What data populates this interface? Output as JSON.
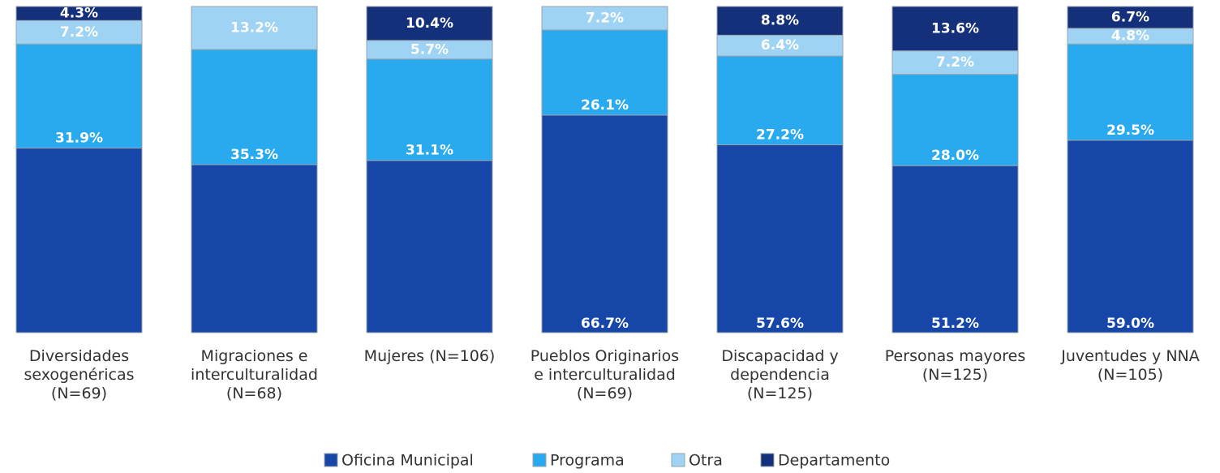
{
  "chart_data": {
    "type": "stacked_bar",
    "categories": [
      "Diversidades sexogenéricas (N=69)",
      "Migraciones e interculturalidad (N=68)",
      "Mujeres (N=106)",
      "Pueblos Originarios e interculturalidad (N=69)",
      "Discapacidad y dependencia (N=125)",
      "Personas mayores (N=125)",
      "Juventudes y NNA (N=105)"
    ],
    "ylim": [
      0,
      100
    ],
    "series": [
      {
        "name": "Oficina Municipal",
        "color": "#1646a8",
        "values": [
          56.6,
          51.5,
          52.8,
          66.7,
          57.6,
          51.2,
          59.0
        ],
        "value_labels": [
          null,
          null,
          null,
          "66.7%",
          "57.6%",
          "51.2%",
          "59.0%"
        ]
      },
      {
        "name": "Programa",
        "color": "#29aaee",
        "values": [
          31.9,
          35.3,
          31.1,
          26.1,
          27.2,
          28.0,
          29.5
        ],
        "value_labels": [
          "31.9%",
          "35.3%",
          "31.1%",
          "26.1%",
          "27.2%",
          "28.0%",
          "29.5%"
        ]
      },
      {
        "name": "Otra",
        "color": "#9fd3f3",
        "values": [
          7.2,
          13.2,
          5.7,
          7.2,
          6.4,
          7.2,
          4.8
        ],
        "value_labels": [
          "7.2%",
          "13.2%",
          "5.7%",
          "7.2%",
          "6.4%",
          "7.2%",
          "4.8%"
        ]
      },
      {
        "name": "Departamento",
        "color": "#14307a",
        "values": [
          4.3,
          0,
          10.4,
          0,
          8.8,
          13.6,
          6.7
        ],
        "value_labels": [
          "4.3%",
          null,
          "10.4%",
          null,
          "8.8%",
          "13.6%",
          "6.7%"
        ]
      }
    ],
    "legend": "bottom"
  }
}
